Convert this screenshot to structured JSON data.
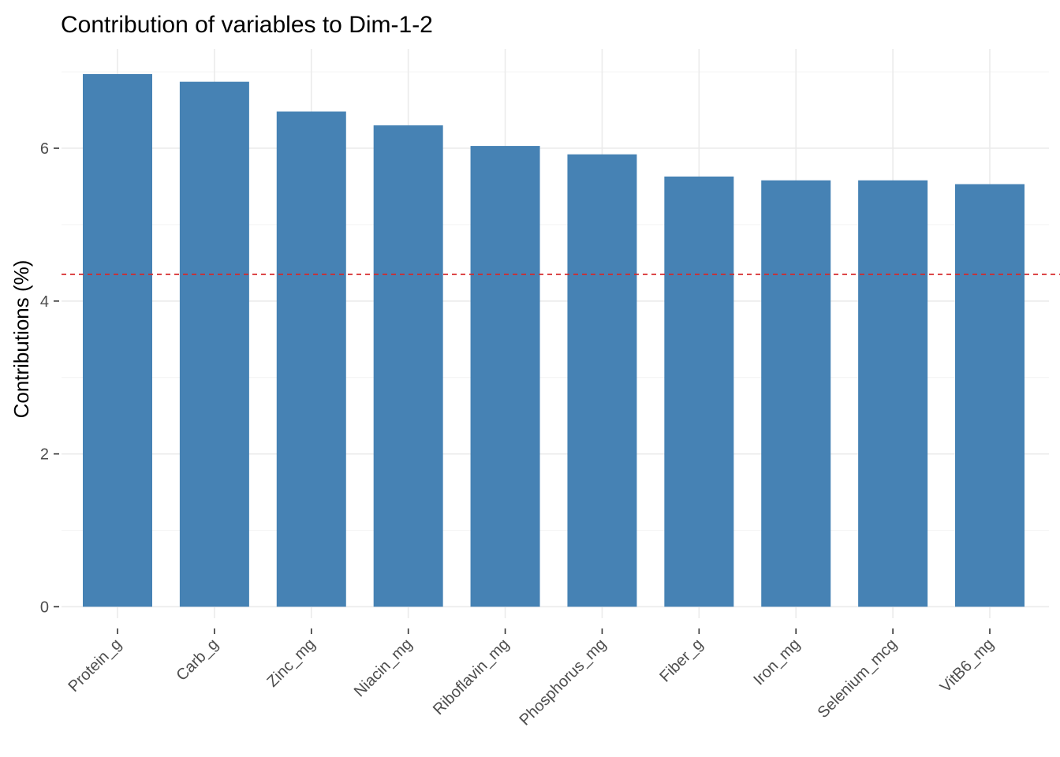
{
  "chart_data": {
    "type": "bar",
    "title": "Contribution of variables to Dim-1-2",
    "xlabel": "",
    "ylabel": "Contributions (%)",
    "categories": [
      "Protein_g",
      "Carb_g",
      "Zinc_mg",
      "Niacin_mg",
      "Riboflavin_mg",
      "Phosphorus_mg",
      "Fiber_g",
      "Iron_mg",
      "Selenium_mcg",
      "VitB6_mg"
    ],
    "values": [
      6.97,
      6.87,
      6.48,
      6.3,
      6.03,
      5.92,
      5.63,
      5.58,
      5.58,
      5.53
    ],
    "ylim": [
      -0.15,
      7.3
    ],
    "yticks": [
      0,
      2,
      4,
      6
    ],
    "reference_line": {
      "value": 4.35,
      "color": "#d62728",
      "style": "dashed"
    },
    "bar_color": "#4682b4",
    "grid": true,
    "legend": "none"
  }
}
